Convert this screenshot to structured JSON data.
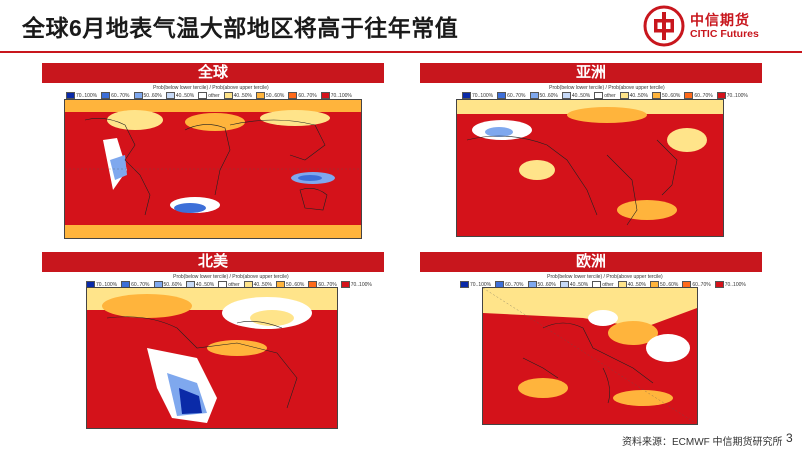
{
  "header": {
    "title": "全球6月地表气温大部地区将高于往年常值"
  },
  "logo": {
    "name_cn": "中信期货",
    "name_en": "CITIC Futures"
  },
  "panels": [
    {
      "label": "全球"
    },
    {
      "label": "亚洲"
    },
    {
      "label": "北美"
    },
    {
      "label": "欧洲"
    }
  ],
  "legend": {
    "caption": "Prob(below lower tercile) / Prob(above upper tercile)",
    "items": [
      "70..100%",
      "60..70%",
      "50..60%",
      "40..50%",
      "other",
      "40..50%",
      "50..60%",
      "60..70%",
      "70..100%"
    ],
    "colors": [
      "#0a2aa8",
      "#3d6fd8",
      "#7fa8ee",
      "#c6d9f7",
      "#ffffff",
      "#ffe48a",
      "#ffb43c",
      "#ff6a1a",
      "#d4121a"
    ]
  },
  "footer": {
    "source": "资料来源：ECMWF 中信期货研究所",
    "page": "3"
  }
}
